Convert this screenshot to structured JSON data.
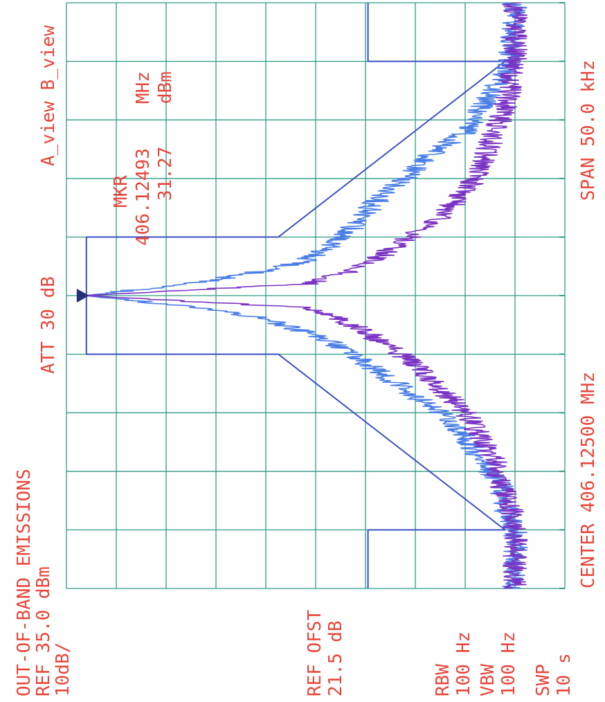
{
  "window": {
    "title": "OUT-OF-BAND EMISSIONS"
  },
  "annotations": {
    "title": "OUT-OF-BAND EMISSIONS",
    "ref_level": "REF 35.0 dBm",
    "scale": "10dB/",
    "attenuation": "ATT 30 dB",
    "views": "A_view B_view",
    "marker_label": "MKR",
    "marker_freq": "406.12493",
    "marker_freq_unit": "MHz",
    "marker_level": "31.27",
    "marker_level_unit": "dBm",
    "ref_offset_label": "REF OFST",
    "ref_offset_value": "21.5 dB",
    "rbw_label": "RBW",
    "rbw_value": "100 Hz",
    "vbw_label": "VBW",
    "vbw_value": "100 Hz",
    "sweep_label": "SWP",
    "sweep_value": "10 s",
    "center": "CENTER 406.12500 MHz",
    "span": "SPAN 50.0 kHz"
  },
  "colors": {
    "grid": "#2e9a84",
    "text": "#e8453a",
    "mask": "#3a4fc4",
    "trace_a": "#4a7ee6",
    "trace_b": "#7a33c4",
    "marker": "#24307a"
  },
  "chart_data": {
    "type": "line",
    "title": "OUT-OF-BAND EMISSIONS",
    "xlabel": "",
    "ylabel": "",
    "x_unit": "kHz offset from center",
    "y_unit": "dBm",
    "xlim": [
      -25,
      25
    ],
    "ylim": [
      -65,
      35
    ],
    "grid": true,
    "divisions": {
      "x": 10,
      "y": 10
    },
    "marker": {
      "x": 0,
      "y": 31.27,
      "freq_mhz": 406.12493
    },
    "series": [
      {
        "name": "mask",
        "x": [
          -25,
          -20,
          -20,
          -5,
          -5,
          5,
          5,
          20,
          20,
          25
        ],
        "y": [
          -25.5,
          -25.5,
          -53,
          -7.5,
          31,
          31,
          -7.5,
          -53,
          -25.5,
          -25.5
        ]
      },
      {
        "name": "A_view",
        "x": [
          -25,
          -20,
          -18,
          -16,
          -14,
          -12,
          -10,
          -8,
          -6,
          -4,
          -3,
          -2,
          -1,
          0,
          1,
          2,
          3,
          4,
          6,
          8,
          10,
          12,
          14,
          16,
          18,
          20,
          25
        ],
        "y": [
          -55,
          -55,
          -53,
          -52,
          -48,
          -45,
          -40,
          -33,
          -26,
          -18,
          -12,
          -5,
          8,
          31.3,
          10,
          -3,
          -13,
          -17,
          -23,
          -27,
          -33,
          -38,
          -45,
          -48,
          -51,
          -54,
          -55
        ]
      },
      {
        "name": "B_view",
        "x": [
          -25,
          -20,
          -18,
          -16,
          -14,
          -12,
          -10,
          -8,
          -6,
          -5,
          -4,
          -3,
          -2,
          -1,
          0,
          1,
          2,
          3,
          4,
          5,
          6,
          8,
          10,
          12,
          14,
          16,
          18,
          20,
          25
        ],
        "y": [
          -55,
          -55,
          -54,
          -52,
          -51,
          -48,
          -45,
          -40,
          -35,
          -32,
          -28,
          -25,
          -20,
          -12,
          31.3,
          -13,
          -21,
          -27,
          -30,
          -34,
          -38,
          -43,
          -47,
          -49,
          -51,
          -53,
          -54,
          -55,
          -55
        ]
      }
    ]
  }
}
